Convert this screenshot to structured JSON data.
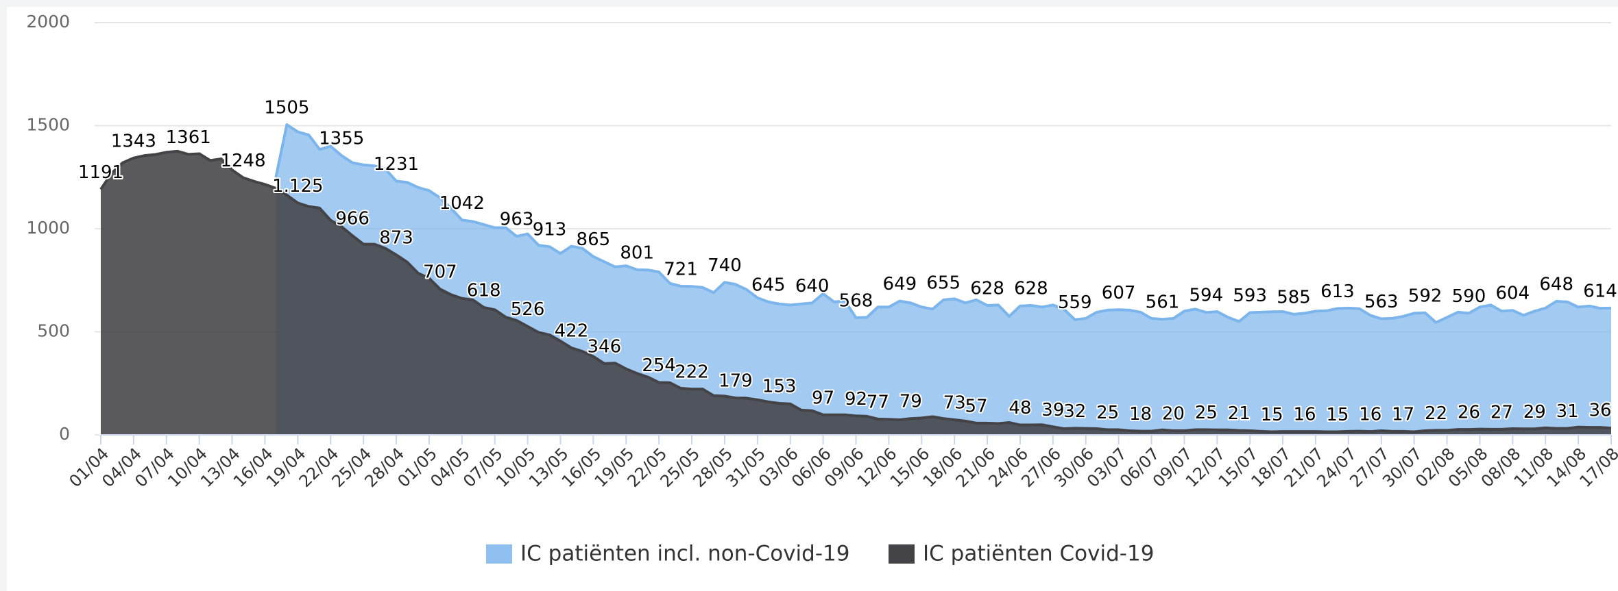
{
  "chart_data": {
    "type": "area",
    "categories": [
      "01/04",
      null,
      null,
      "04/04",
      null,
      null,
      "07/04",
      null,
      null,
      "10/04",
      null,
      null,
      "13/04",
      null,
      null,
      "16/04",
      null,
      null,
      "19/04",
      null,
      null,
      "22/04",
      null,
      null,
      "25/04",
      null,
      null,
      "28/04",
      null,
      null,
      "01/05",
      null,
      null,
      "04/05",
      null,
      null,
      "07/05",
      null,
      null,
      "10/05",
      null,
      null,
      "13/05",
      null,
      null,
      "16/05",
      null,
      null,
      "19/05",
      null,
      null,
      "22/05",
      null,
      null,
      "25/05",
      null,
      null,
      "28/05",
      null,
      null,
      "31/05",
      null,
      null,
      "03/06",
      null,
      null,
      "06/06",
      null,
      null,
      "09/06",
      null,
      null,
      "12/06",
      null,
      null,
      "15/06",
      null,
      null,
      "18/06",
      null,
      null,
      "21/06",
      null,
      null,
      "24/06",
      null,
      null,
      "27/06",
      null,
      null,
      "30/06",
      null,
      null,
      "03/07",
      null,
      null,
      "06/07",
      null,
      null,
      "09/07",
      null,
      null,
      "12/07",
      null,
      null,
      "15/07",
      null,
      null,
      "18/07",
      null,
      null,
      "21/07",
      null,
      null,
      "24/07",
      null,
      null,
      "27/07",
      null,
      null,
      "30/07",
      null,
      null,
      "02/08",
      null,
      null,
      "05/08",
      null,
      null,
      "08/08",
      null,
      null,
      "11/08",
      null,
      null,
      "14/08",
      null,
      null,
      "17/08"
    ],
    "series": [
      {
        "name": "IC patiënten incl. non-Covid-19",
        "color": "#7cb5ec",
        "values": [
          null,
          null,
          null,
          null,
          null,
          null,
          null,
          null,
          null,
          null,
          null,
          null,
          null,
          null,
          null,
          null,
          1250,
          1505,
          1470,
          1455,
          1385,
          1400,
          1355,
          1320,
          1310,
          1305,
          1290,
          1231,
          1225,
          1200,
          1185,
          1150,
          1100,
          1042,
          1035,
          1020,
          1005,
          1005,
          963,
          975,
          920,
          913,
          880,
          915,
          905,
          865,
          840,
          815,
          820,
          801,
          800,
          790,
          735,
          721,
          720,
          715,
          690,
          740,
          730,
          705,
          665,
          645,
          635,
          630,
          635,
          640,
          685,
          645,
          650,
          568,
          570,
          620,
          620,
          649,
          640,
          620,
          610,
          655,
          660,
          640,
          655,
          628,
          630,
          575,
          625,
          628,
          620,
          630,
          610,
          559,
          565,
          595,
          605,
          607,
          605,
          595,
          565,
          561,
          565,
          600,
          610,
          594,
          598,
          570,
          550,
          593,
          595,
          597,
          598,
          585,
          590,
          600,
          602,
          613,
          615,
          612,
          580,
          563,
          565,
          575,
          590,
          592,
          545,
          570,
          595,
          590,
          620,
          630,
          600,
          604,
          580,
          600,
          615,
          648,
          645,
          620,
          625,
          614,
          615
        ],
        "value_labels": [
          null,
          null,
          null,
          null,
          null,
          null,
          null,
          null,
          null,
          null,
          null,
          null,
          null,
          null,
          null,
          null,
          null,
          "1505",
          null,
          null,
          null,
          null,
          "1355",
          null,
          null,
          null,
          null,
          "1231",
          null,
          null,
          null,
          null,
          null,
          "1042",
          null,
          null,
          null,
          null,
          "963",
          null,
          null,
          "913",
          null,
          null,
          null,
          "865",
          null,
          null,
          null,
          "801",
          null,
          null,
          null,
          "721",
          null,
          null,
          null,
          "740",
          null,
          null,
          null,
          "645",
          null,
          null,
          null,
          "640",
          null,
          null,
          null,
          "568",
          null,
          null,
          null,
          "649",
          null,
          null,
          null,
          "655",
          null,
          null,
          null,
          "628",
          null,
          null,
          null,
          "628",
          null,
          null,
          null,
          "559",
          null,
          null,
          null,
          "607",
          null,
          null,
          null,
          "561",
          null,
          null,
          null,
          "594",
          null,
          null,
          null,
          "593",
          null,
          null,
          null,
          "585",
          null,
          null,
          null,
          "613",
          null,
          null,
          null,
          "563",
          null,
          null,
          null,
          "592",
          null,
          null,
          null,
          "590",
          null,
          null,
          null,
          "604",
          null,
          null,
          null,
          "648",
          null,
          null,
          null,
          "614",
          null
        ]
      },
      {
        "name": "IC patiënten Covid-19",
        "color": "#434348",
        "values": [
          1191,
          1270,
          1320,
          1343,
          1355,
          1360,
          1371,
          1376,
          1361,
          1364,
          1331,
          1339,
          1285,
          1248,
          1230,
          1215,
          1196,
          1163,
          1125,
          1108,
          1100,
          1041,
          1010,
          966,
          925,
          925,
          905,
          873,
          838,
          784,
          760,
          707,
          680,
          662,
          655,
          618,
          607,
          571,
          555,
          526,
          497,
          485,
          455,
          422,
          405,
          380,
          346,
          348,
          320,
          298,
          280,
          254,
          253,
          226,
          222,
          222,
          190,
          188,
          179,
          178,
          170,
          160,
          153,
          150,
          120,
          117,
          97,
          97,
          97,
          92,
          90,
          77,
          75,
          73,
          79,
          82,
          88,
          79,
          73,
          67,
          57,
          57,
          55,
          60,
          48,
          48,
          49,
          39,
          30,
          32,
          31,
          30,
          25,
          25,
          20,
          18,
          18,
          24,
          20,
          20,
          25,
          25,
          24,
          24,
          21,
          20,
          17,
          15,
          16,
          16,
          16,
          16,
          15,
          15,
          17,
          18,
          16,
          20,
          17,
          17,
          15,
          20,
          22,
          22,
          26,
          26,
          28,
          27,
          27,
          30,
          29,
          29,
          34,
          31,
          31,
          38,
          36,
          36,
          33
        ],
        "value_labels": [
          "1191",
          null,
          null,
          "1343",
          null,
          null,
          null,
          null,
          "1361",
          null,
          null,
          null,
          null,
          "1248",
          null,
          null,
          null,
          null,
          "1.125",
          null,
          null,
          null,
          null,
          "966",
          null,
          null,
          null,
          "873",
          null,
          null,
          null,
          "707",
          null,
          null,
          null,
          "618",
          null,
          null,
          null,
          "526",
          null,
          null,
          null,
          "422",
          null,
          null,
          "346",
          null,
          null,
          null,
          null,
          "254",
          null,
          null,
          "222",
          null,
          null,
          null,
          "179",
          null,
          null,
          null,
          "153",
          null,
          null,
          null,
          "97",
          null,
          null,
          "92",
          null,
          "77",
          null,
          null,
          "79",
          null,
          null,
          null,
          "73",
          null,
          "57",
          null,
          null,
          null,
          "48",
          null,
          null,
          "39",
          null,
          "32",
          null,
          null,
          "25",
          null,
          null,
          "18",
          null,
          null,
          "20",
          null,
          null,
          "25",
          null,
          null,
          "21",
          null,
          null,
          "15",
          null,
          null,
          "16",
          null,
          null,
          "15",
          null,
          null,
          "16",
          null,
          null,
          "17",
          null,
          null,
          "22",
          null,
          null,
          "26",
          null,
          null,
          "27",
          null,
          null,
          "29",
          null,
          null,
          "31",
          null,
          null,
          "36",
          null
        ]
      }
    ],
    "ylim": [
      0,
      2000
    ],
    "yticks": [
      0,
      500,
      1000,
      1500,
      2000
    ],
    "grid": true,
    "legend": "bottom"
  }
}
